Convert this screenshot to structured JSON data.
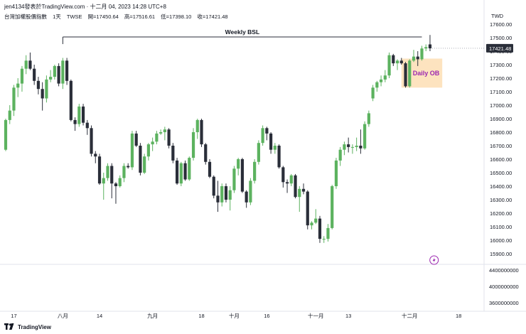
{
  "header": {
    "author": "jen4134發表於TradingView.com",
    "datetime": "十二月 04, 2023 14:28 UTC+8",
    "symbol": "台灣加權股價指數",
    "interval": "1天",
    "exchange": "TWSE",
    "open": "開=17450.64",
    "high": "高=17516.61",
    "low": "低=17398.10",
    "close": "收=17421.48"
  },
  "currency": "TWD",
  "footer": {
    "brand": "TradingView"
  },
  "colors": {
    "up": "#5cb25f",
    "down": "#2a2e39",
    "zone_fill": "#fde3bf",
    "zone_text": "#9c27b0",
    "line": "#2a2e39",
    "last_price_bg": "#2a2e39"
  },
  "chart_data": {
    "type": "candlestick",
    "price_axis": {
      "min": 15900,
      "max": 17600,
      "ticks": [
        "17600.00",
        "17500.00",
        "17400.00",
        "17300.00",
        "17200.00",
        "17100.00",
        "17000.00",
        "16900.00",
        "16800.00",
        "16700.00",
        "16600.00",
        "16500.00",
        "16400.00",
        "16300.00",
        "16200.00",
        "16100.00",
        "16000.00",
        "15900.00"
      ]
    },
    "last_price": {
      "value": 17421.48,
      "label": "17421.48"
    },
    "volume_axis": {
      "ticks": [
        "4400000000",
        "4000000000",
        "3600000000"
      ]
    },
    "x_labels": [
      {
        "label": "17",
        "index": 2
      },
      {
        "label": "八月",
        "index": 14
      },
      {
        "label": "14",
        "index": 23
      },
      {
        "label": "九月",
        "index": 36
      },
      {
        "label": "18",
        "index": 48
      },
      {
        "label": "十月",
        "index": 56
      },
      {
        "label": "16",
        "index": 64
      },
      {
        "label": "十一月",
        "index": 76
      },
      {
        "label": "13",
        "index": 84
      },
      {
        "label": "十二月",
        "index": 99
      },
      {
        "label": "18",
        "index": 111
      }
    ],
    "annotations": [
      {
        "type": "horizontal_line",
        "label": "Weekly BSL",
        "price": 17505,
        "from_index": 14,
        "to_index": 102
      },
      {
        "type": "zone",
        "label": "Daily OB",
        "top": 17345,
        "bottom": 17130,
        "from_index": 97,
        "to_index": 107
      }
    ],
    "candles": [
      {
        "o": 16670,
        "h": 16900,
        "l": 16660,
        "c": 16890
      },
      {
        "o": 16890,
        "h": 17000,
        "l": 16860,
        "c": 16960
      },
      {
        "o": 16960,
        "h": 17150,
        "l": 16920,
        "c": 17130
      },
      {
        "o": 17130,
        "h": 17200,
        "l": 17060,
        "c": 17160
      },
      {
        "o": 17160,
        "h": 17290,
        "l": 17100,
        "c": 17270
      },
      {
        "o": 17270,
        "h": 17370,
        "l": 17230,
        "c": 17330
      },
      {
        "o": 17330,
        "h": 17390,
        "l": 17260,
        "c": 17270
      },
      {
        "o": 17270,
        "h": 17300,
        "l": 17150,
        "c": 17180
      },
      {
        "o": 17180,
        "h": 17210,
        "l": 17080,
        "c": 17120
      },
      {
        "o": 17120,
        "h": 17170,
        "l": 16960,
        "c": 17050
      },
      {
        "o": 17050,
        "h": 17220,
        "l": 17020,
        "c": 17190
      },
      {
        "o": 17190,
        "h": 17260,
        "l": 17170,
        "c": 17210
      },
      {
        "o": 17210,
        "h": 17300,
        "l": 17190,
        "c": 17290
      },
      {
        "o": 17290,
        "h": 17310,
        "l": 17140,
        "c": 17160
      },
      {
        "o": 17160,
        "h": 17350,
        "l": 17120,
        "c": 17330
      },
      {
        "o": 17330,
        "h": 17350,
        "l": 17150,
        "c": 17180
      },
      {
        "o": 17180,
        "h": 17190,
        "l": 16880,
        "c": 16890
      },
      {
        "o": 16890,
        "h": 16910,
        "l": 16810,
        "c": 16860
      },
      {
        "o": 16860,
        "h": 17010,
        "l": 16840,
        "c": 16990
      },
      {
        "o": 16990,
        "h": 17010,
        "l": 16850,
        "c": 16870
      },
      {
        "o": 16870,
        "h": 16890,
        "l": 16780,
        "c": 16830
      },
      {
        "o": 16830,
        "h": 16850,
        "l": 16620,
        "c": 16640
      },
      {
        "o": 16640,
        "h": 16660,
        "l": 16570,
        "c": 16620
      },
      {
        "o": 16620,
        "h": 16640,
        "l": 16410,
        "c": 16420
      },
      {
        "o": 16420,
        "h": 16500,
        "l": 16300,
        "c": 16460
      },
      {
        "o": 16460,
        "h": 16570,
        "l": 16440,
        "c": 16550
      },
      {
        "o": 16550,
        "h": 16570,
        "l": 16310,
        "c": 16420
      },
      {
        "o": 16420,
        "h": 16430,
        "l": 16270,
        "c": 16400
      },
      {
        "o": 16400,
        "h": 16480,
        "l": 16390,
        "c": 16460
      },
      {
        "o": 16460,
        "h": 16570,
        "l": 16430,
        "c": 16550
      },
      {
        "o": 16550,
        "h": 16570,
        "l": 16530,
        "c": 16540
      },
      {
        "o": 16540,
        "h": 16810,
        "l": 16520,
        "c": 16790
      },
      {
        "o": 16790,
        "h": 16810,
        "l": 16690,
        "c": 16700
      },
      {
        "o": 16700,
        "h": 16720,
        "l": 16480,
        "c": 16500
      },
      {
        "o": 16500,
        "h": 16640,
        "l": 16490,
        "c": 16620
      },
      {
        "o": 16620,
        "h": 16720,
        "l": 16590,
        "c": 16710
      },
      {
        "o": 16710,
        "h": 16760,
        "l": 16660,
        "c": 16730
      },
      {
        "o": 16730,
        "h": 16810,
        "l": 16710,
        "c": 16790
      },
      {
        "o": 16790,
        "h": 16820,
        "l": 16780,
        "c": 16800
      },
      {
        "o": 16800,
        "h": 16840,
        "l": 16740,
        "c": 16820
      },
      {
        "o": 16820,
        "h": 16830,
        "l": 16680,
        "c": 16700
      },
      {
        "o": 16700,
        "h": 16720,
        "l": 16570,
        "c": 16590
      },
      {
        "o": 16590,
        "h": 16610,
        "l": 16410,
        "c": 16420
      },
      {
        "o": 16420,
        "h": 16580,
        "l": 16400,
        "c": 16570
      },
      {
        "o": 16570,
        "h": 16590,
        "l": 16440,
        "c": 16450
      },
      {
        "o": 16450,
        "h": 16620,
        "l": 16440,
        "c": 16610
      },
      {
        "o": 16610,
        "h": 16830,
        "l": 16590,
        "c": 16800
      },
      {
        "o": 16800,
        "h": 16900,
        "l": 16750,
        "c": 16890
      },
      {
        "o": 16890,
        "h": 16900,
        "l": 16690,
        "c": 16710
      },
      {
        "o": 16710,
        "h": 16720,
        "l": 16560,
        "c": 16580
      },
      {
        "o": 16580,
        "h": 16600,
        "l": 16460,
        "c": 16470
      },
      {
        "o": 16470,
        "h": 16480,
        "l": 16310,
        "c": 16330
      },
      {
        "o": 16330,
        "h": 16440,
        "l": 16210,
        "c": 16280
      },
      {
        "o": 16280,
        "h": 16420,
        "l": 16250,
        "c": 16400
      },
      {
        "o": 16400,
        "h": 16420,
        "l": 16280,
        "c": 16300
      },
      {
        "o": 16300,
        "h": 16400,
        "l": 16220,
        "c": 16370
      },
      {
        "o": 16370,
        "h": 16550,
        "l": 16350,
        "c": 16530
      },
      {
        "o": 16530,
        "h": 16610,
        "l": 16480,
        "c": 16600
      },
      {
        "o": 16600,
        "h": 16610,
        "l": 16350,
        "c": 16360
      },
      {
        "o": 16360,
        "h": 16370,
        "l": 16240,
        "c": 16280
      },
      {
        "o": 16280,
        "h": 16460,
        "l": 16260,
        "c": 16440
      },
      {
        "o": 16440,
        "h": 16600,
        "l": 16420,
        "c": 16580
      },
      {
        "o": 16580,
        "h": 16740,
        "l": 16560,
        "c": 16720
      },
      {
        "o": 16720,
        "h": 16850,
        "l": 16700,
        "c": 16830
      },
      {
        "o": 16830,
        "h": 16840,
        "l": 16740,
        "c": 16790
      },
      {
        "o": 16790,
        "h": 16800,
        "l": 16640,
        "c": 16670
      },
      {
        "o": 16670,
        "h": 16720,
        "l": 16640,
        "c": 16700
      },
      {
        "o": 16700,
        "h": 16710,
        "l": 16530,
        "c": 16540
      },
      {
        "o": 16540,
        "h": 16550,
        "l": 16390,
        "c": 16430
      },
      {
        "o": 16430,
        "h": 16450,
        "l": 16350,
        "c": 16420
      },
      {
        "o": 16420,
        "h": 16490,
        "l": 16400,
        "c": 16480
      },
      {
        "o": 16480,
        "h": 16490,
        "l": 16310,
        "c": 16320
      },
      {
        "o": 16320,
        "h": 16400,
        "l": 16210,
        "c": 16380
      },
      {
        "o": 16380,
        "h": 16420,
        "l": 16340,
        "c": 16360
      },
      {
        "o": 16360,
        "h": 16370,
        "l": 16080,
        "c": 16110
      },
      {
        "o": 16110,
        "h": 16140,
        "l": 16080,
        "c": 16130
      },
      {
        "o": 16130,
        "h": 16230,
        "l": 16120,
        "c": 16160
      },
      {
        "o": 16160,
        "h": 16180,
        "l": 15980,
        "c": 16010
      },
      {
        "o": 16010,
        "h": 16030,
        "l": 15980,
        "c": 16010
      },
      {
        "o": 16010,
        "h": 16120,
        "l": 15990,
        "c": 16090
      },
      {
        "o": 16090,
        "h": 16410,
        "l": 16080,
        "c": 16400
      },
      {
        "o": 16400,
        "h": 16610,
        "l": 16380,
        "c": 16590
      },
      {
        "o": 16590,
        "h": 16690,
        "l": 16550,
        "c": 16670
      },
      {
        "o": 16670,
        "h": 16730,
        "l": 16630,
        "c": 16710
      },
      {
        "o": 16710,
        "h": 16760,
        "l": 16650,
        "c": 16690
      },
      {
        "o": 16690,
        "h": 16710,
        "l": 16640,
        "c": 16690
      },
      {
        "o": 16690,
        "h": 16760,
        "l": 16660,
        "c": 16700
      },
      {
        "o": 16700,
        "h": 16820,
        "l": 16640,
        "c": 16680
      },
      {
        "o": 16680,
        "h": 16880,
        "l": 16670,
        "c": 16860
      },
      {
        "o": 16860,
        "h": 16960,
        "l": 16840,
        "c": 16940
      },
      {
        "o": 17050,
        "h": 17150,
        "l": 17030,
        "c": 17130
      },
      {
        "o": 17130,
        "h": 17180,
        "l": 17100,
        "c": 17170
      },
      {
        "o": 17170,
        "h": 17220,
        "l": 17140,
        "c": 17190
      },
      {
        "o": 17190,
        "h": 17260,
        "l": 17170,
        "c": 17220
      },
      {
        "o": 17220,
        "h": 17390,
        "l": 17200,
        "c": 17370
      },
      {
        "o": 17370,
        "h": 17380,
        "l": 17290,
        "c": 17310
      },
      {
        "o": 17310,
        "h": 17340,
        "l": 17260,
        "c": 17330
      },
      {
        "o": 17330,
        "h": 17350,
        "l": 17300,
        "c": 17310
      },
      {
        "o": 17310,
        "h": 17320,
        "l": 17130,
        "c": 17140
      },
      {
        "o": 17140,
        "h": 17340,
        "l": 17130,
        "c": 17330
      },
      {
        "o": 17330,
        "h": 17410,
        "l": 17320,
        "c": 17360
      },
      {
        "o": 17360,
        "h": 17400,
        "l": 17290,
        "c": 17340
      },
      {
        "o": 17340,
        "h": 17440,
        "l": 17330,
        "c": 17420
      },
      {
        "o": 17420,
        "h": 17450,
        "l": 17400,
        "c": 17430
      },
      {
        "o": 17450,
        "h": 17520,
        "l": 17400,
        "c": 17421
      }
    ],
    "marker": {
      "type": "lightning",
      "index": 105
    }
  }
}
